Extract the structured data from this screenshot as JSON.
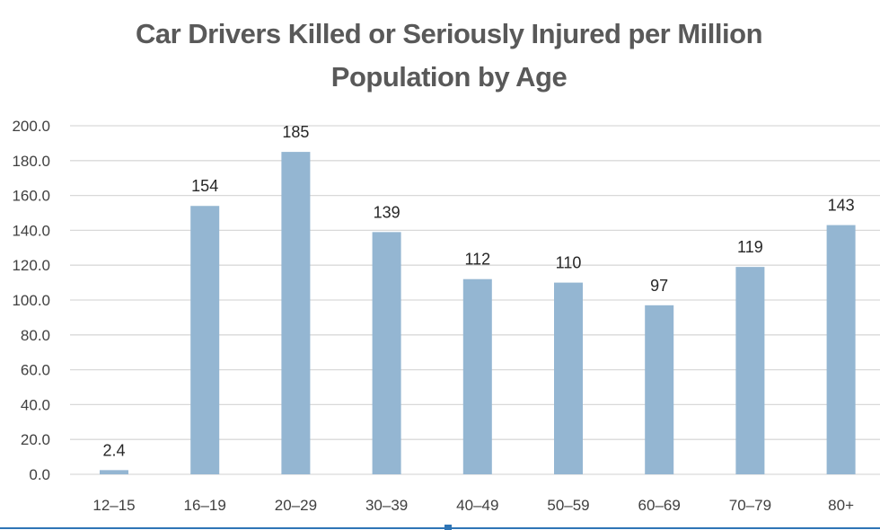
{
  "chart_data": {
    "type": "bar",
    "title_line1": "Car Drivers Killed or Seriously Injured per Million",
    "title_line2": "Population by Age",
    "categories": [
      "12–15",
      "16–19",
      "20–29",
      "30–39",
      "40–49",
      "50–59",
      "60–69",
      "70–79",
      "80+"
    ],
    "values": [
      2.4,
      154,
      185,
      139,
      112,
      110,
      97,
      119,
      143
    ],
    "data_labels": [
      "2.4",
      "154",
      "185",
      "139",
      "112",
      "110",
      "97",
      "119",
      "143"
    ],
    "y_ticks": [
      "0.0",
      "20.0",
      "40.0",
      "60.0",
      "80.0",
      "100.0",
      "120.0",
      "140.0",
      "160.0",
      "180.0",
      "200.0"
    ],
    "ylim": [
      0,
      200
    ],
    "grid": true,
    "legend": "none",
    "bar_color": "#94b6d2",
    "grid_color": "#d9d9d9"
  }
}
